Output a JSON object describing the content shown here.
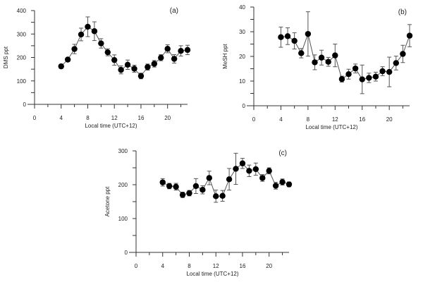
{
  "chart_data": [
    {
      "type": "scatter",
      "panel_label": "(a)",
      "xlabel": "Local time (UTC+12)",
      "ylabel": "DMS ppt",
      "xlim": [
        0,
        23
      ],
      "ylim": [
        0,
        400
      ],
      "xticks": [
        0,
        4,
        8,
        12,
        16,
        20
      ],
      "yticks": [
        0,
        100,
        200,
        300,
        400
      ],
      "x": [
        4,
        5,
        6,
        7,
        8,
        9,
        10,
        11,
        12,
        13,
        14,
        15,
        16,
        17,
        18,
        19,
        20,
        21,
        22,
        23
      ],
      "y": [
        162,
        191,
        236,
        298,
        331,
        312,
        260,
        222,
        189,
        147,
        169,
        152,
        121,
        159,
        173,
        199,
        237,
        194,
        228,
        232
      ],
      "err": [
        8,
        8,
        20,
        27,
        42,
        40,
        20,
        15,
        22,
        17,
        20,
        15,
        12,
        13,
        14,
        13,
        17,
        18,
        22,
        20
      ]
    },
    {
      "type": "scatter",
      "panel_label": "(b)",
      "xlabel": "Local time (UTC+12)",
      "ylabel": "MeSH ppt",
      "xlim": [
        0,
        23
      ],
      "ylim": [
        0,
        40
      ],
      "xticks": [
        0,
        4,
        8,
        12,
        16,
        20
      ],
      "yticks": [
        0,
        10,
        20,
        30,
        40
      ],
      "x": [
        4,
        5,
        6,
        7,
        8,
        9,
        10,
        11,
        12,
        13,
        14,
        15,
        16,
        17,
        18,
        19,
        20,
        21,
        22,
        23
      ],
      "y": [
        27.8,
        28.2,
        26.3,
        21.3,
        29.1,
        17.6,
        19.5,
        17.8,
        20.4,
        10.8,
        12.8,
        15.1,
        10.7,
        11.3,
        11.8,
        14.0,
        13.7,
        17.3,
        21.0,
        28.4
      ],
      "err": [
        4.1,
        3.4,
        3.3,
        1.9,
        9.0,
        3.0,
        3.0,
        1.8,
        4.6,
        1.2,
        2.0,
        1.8,
        5.8,
        1.9,
        1.8,
        1.8,
        6.0,
        2.8,
        3.5,
        4.5
      ]
    },
    {
      "type": "scatter",
      "panel_label": "(c)",
      "xlabel": "Local time (UTC+12)",
      "ylabel": "Acetone ppt",
      "xlim": [
        0,
        23
      ],
      "ylim": [
        0,
        300
      ],
      "xticks": [
        0,
        4,
        8,
        12,
        16,
        20
      ],
      "yticks": [
        0,
        100,
        200,
        300
      ],
      "x": [
        4,
        5,
        6,
        7,
        8,
        9,
        10,
        11,
        12,
        13,
        14,
        15,
        16,
        17,
        18,
        19,
        20,
        21,
        22,
        23
      ],
      "y": [
        207,
        196,
        194,
        170,
        175,
        196,
        185,
        220,
        166,
        167,
        216,
        247,
        263,
        241,
        246,
        220,
        241,
        197,
        208,
        201
      ],
      "err": [
        11,
        8,
        10,
        8,
        8,
        22,
        12,
        20,
        18,
        16,
        32,
        46,
        15,
        17,
        18,
        10,
        9,
        10,
        9,
        7
      ]
    }
  ]
}
